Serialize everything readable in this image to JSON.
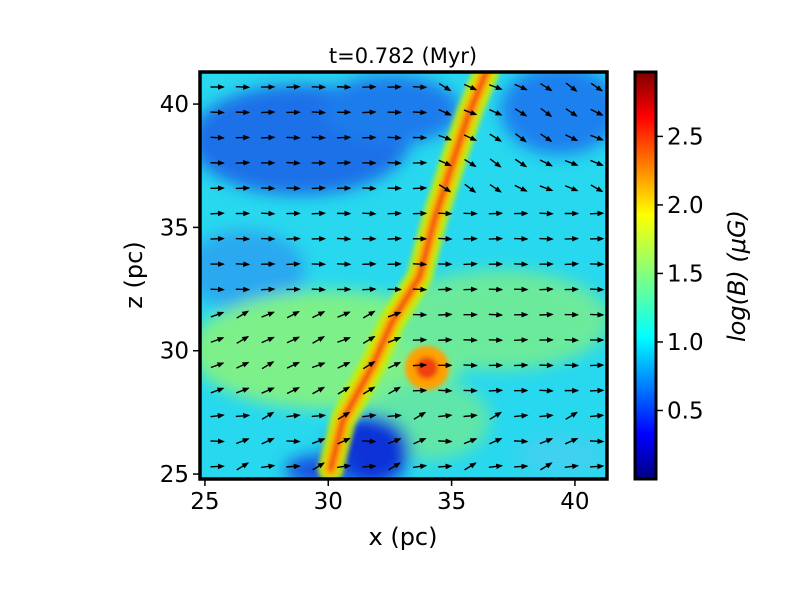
{
  "chart_data": {
    "type": "heatmap",
    "title": "t=0.782 (Myr)",
    "xlabel": "x (pc)",
    "ylabel": "z (pc)",
    "xlim": [
      24.8,
      41.3
    ],
    "ylim": [
      24.8,
      41.3
    ],
    "xticks": [
      25,
      30,
      35,
      40
    ],
    "yticks": [
      25,
      30,
      35,
      40
    ],
    "colorbar": {
      "label": "log(B) (μG)",
      "range": [
        0.0,
        2.97
      ],
      "ticks": [
        "0.5",
        "1.0",
        "1.5",
        "2.0",
        "2.5"
      ],
      "colormap": "jet"
    },
    "field": {
      "background_log_b": 1.2,
      "filament_path": [
        [
          30.1,
          25.2
        ],
        [
          30.6,
          27.2
        ],
        [
          31.8,
          29.4
        ],
        [
          32.6,
          31.2
        ],
        [
          33.7,
          33.0
        ],
        [
          34.3,
          35.3
        ],
        [
          35.0,
          37.5
        ],
        [
          35.7,
          39.6
        ],
        [
          36.4,
          41.3
        ]
      ],
      "clump_center": [
        34.0,
        29.3
      ],
      "low_field_regions": [
        [
          30.3,
          39.8
        ],
        [
          32.4,
          26.3
        ],
        [
          38.5,
          40.8
        ]
      ],
      "vector_field": "magnetic field direction arrows, mostly horizontal"
    }
  }
}
